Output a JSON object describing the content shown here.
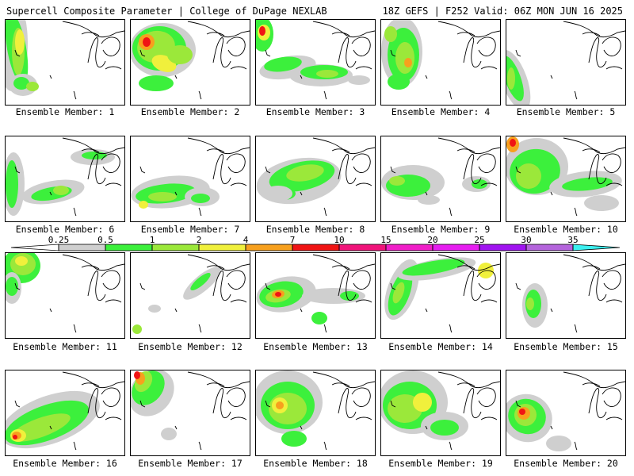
{
  "header": {
    "left_title": "Supercell Composite Parameter | College of DuPage NEXLAB",
    "right_title": "18Z GEFS | F252 Valid: 06Z MON JUN 16 2025"
  },
  "member_label_prefix": "Ensemble Member: ",
  "members": [
    {
      "number": "1",
      "label": "Ensemble Member: 1"
    },
    {
      "number": "2",
      "label": "Ensemble Member: 2"
    },
    {
      "number": "3",
      "label": "Ensemble Member: 3"
    },
    {
      "number": "4",
      "label": "Ensemble Member: 4"
    },
    {
      "number": "5",
      "label": "Ensemble Member: 5"
    },
    {
      "number": "6",
      "label": "Ensemble Member: 6"
    },
    {
      "number": "7",
      "label": "Ensemble Member: 7"
    },
    {
      "number": "8",
      "label": "Ensemble Member: 8"
    },
    {
      "number": "9",
      "label": "Ensemble Member: 9"
    },
    {
      "number": "10",
      "label": "Ensemble Member: 10"
    },
    {
      "number": "11",
      "label": "Ensemble Member: 11"
    },
    {
      "number": "12",
      "label": "Ensemble Member: 12"
    },
    {
      "number": "13",
      "label": "Ensemble Member: 13"
    },
    {
      "number": "14",
      "label": "Ensemble Member: 14"
    },
    {
      "number": "15",
      "label": "Ensemble Member: 15"
    },
    {
      "number": "16",
      "label": "Ensemble Member: 16"
    },
    {
      "number": "17",
      "label": "Ensemble Member: 17"
    },
    {
      "number": "18",
      "label": "Ensemble Member: 18"
    },
    {
      "number": "19",
      "label": "Ensemble Member: 19"
    },
    {
      "number": "20",
      "label": "Ensemble Member: 20"
    }
  ],
  "colorbar": {
    "bins": [
      {
        "from": "0.25",
        "to": "0.5",
        "color": "#cfcfcf"
      },
      {
        "from": "0.5",
        "to": "1",
        "color": "#3cf03c"
      },
      {
        "from": "1",
        "to": "2",
        "color": "#9be83a"
      },
      {
        "from": "2",
        "to": "4",
        "color": "#f0f03c"
      },
      {
        "from": "4",
        "to": "7",
        "color": "#f7a01e"
      },
      {
        "from": "7",
        "to": "10",
        "color": "#f01414"
      },
      {
        "from": "10",
        "to": "15",
        "color": "#f0147a"
      },
      {
        "from": "15",
        "to": "20",
        "color": "#f01ec8"
      },
      {
        "from": "20",
        "to": "25",
        "color": "#e61ef0"
      },
      {
        "from": "25",
        "to": "30",
        "color": "#a014f0"
      },
      {
        "from": "30",
        "to": "35",
        "color": "#b464dc"
      },
      {
        "from": "35",
        "to": "",
        "color": "#3cf0f0"
      }
    ],
    "tick_labels": [
      "0.25",
      "0.5",
      "1",
      "2",
      "4",
      "7",
      "10",
      "15",
      "20",
      "25",
      "30",
      "35"
    ],
    "low_end_color": "#ffffff"
  }
}
